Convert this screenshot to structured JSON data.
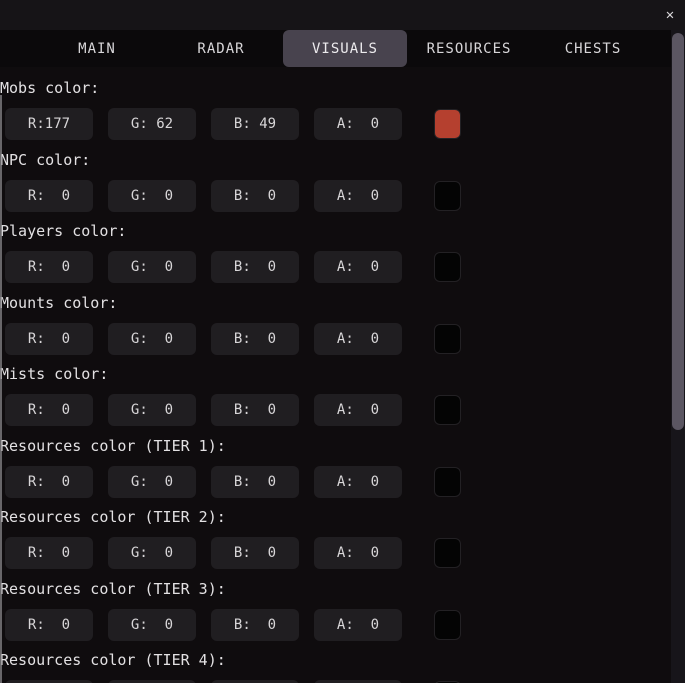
{
  "window": {
    "close_label": "✕"
  },
  "tabs": [
    {
      "label": "MAIN",
      "selected": false
    },
    {
      "label": "RADAR",
      "selected": false
    },
    {
      "label": "VISUALS",
      "selected": true
    },
    {
      "label": "RESOURCES",
      "selected": false
    },
    {
      "label": "CHESTS",
      "selected": false
    }
  ],
  "theme": {
    "selected_tab_bg": "#48434e",
    "mobs_swatch_color": "#b5402f",
    "empty_swatch_color": "#040404"
  },
  "sections": [
    {
      "label": "Mobs color:",
      "fields": [
        "R:177",
        "G: 62",
        "B: 49",
        "A:  0"
      ],
      "swatch": "#b5402f"
    },
    {
      "label": "NPC color:",
      "fields": [
        "R:  0",
        "G:  0",
        "B:  0",
        "A:  0"
      ],
      "swatch": "#040404"
    },
    {
      "label": "Players color:",
      "fields": [
        "R:  0",
        "G:  0",
        "B:  0",
        "A:  0"
      ],
      "swatch": "#040404"
    },
    {
      "label": "Mounts color:",
      "fields": [
        "R:  0",
        "G:  0",
        "B:  0",
        "A:  0"
      ],
      "swatch": "#040404"
    },
    {
      "label": "Mists color:",
      "fields": [
        "R:  0",
        "G:  0",
        "B:  0",
        "A:  0"
      ],
      "swatch": "#040404"
    },
    {
      "label": "Resources color (TIER 1):",
      "fields": [
        "R:  0",
        "G:  0",
        "B:  0",
        "A:  0"
      ],
      "swatch": "#040404"
    },
    {
      "label": "Resources color (TIER 2):",
      "fields": [
        "R:  0",
        "G:  0",
        "B:  0",
        "A:  0"
      ],
      "swatch": "#040404"
    },
    {
      "label": "Resources color (TIER 3):",
      "fields": [
        "R:  0",
        "G:  0",
        "B:  0",
        "A:  0"
      ],
      "swatch": "#040404"
    },
    {
      "label": "Resources color (TIER 4):",
      "fields": [
        "",
        "",
        "",
        ""
      ],
      "swatch": "#040404"
    }
  ]
}
